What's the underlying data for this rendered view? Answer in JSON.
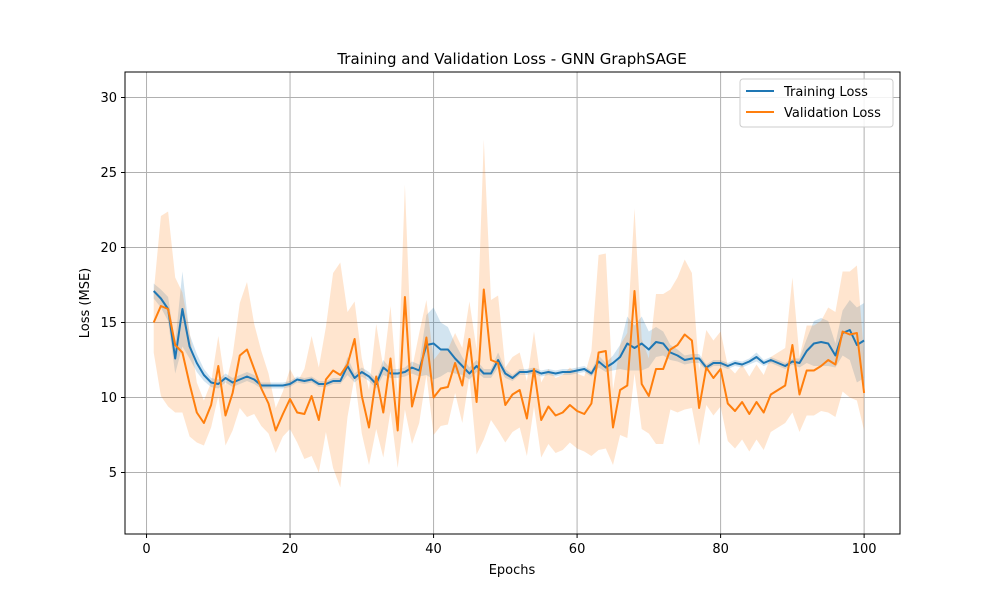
{
  "chart_data": {
    "type": "line",
    "title": "Training and Validation Loss - GNN GraphSAGE",
    "xlabel": "Epochs",
    "ylabel": "Loss (MSE)",
    "xlim": [
      -3,
      105
    ],
    "ylim": [
      0.9,
      31.7
    ],
    "xticks": [
      0,
      20,
      40,
      60,
      80,
      100
    ],
    "yticks": [
      5,
      10,
      15,
      20,
      25,
      30
    ],
    "grid": true,
    "legend_position": "top-right",
    "x": [
      1,
      2,
      3,
      4,
      5,
      6,
      7,
      8,
      9,
      10,
      11,
      12,
      13,
      14,
      15,
      16,
      17,
      18,
      19,
      20,
      21,
      22,
      23,
      24,
      25,
      26,
      27,
      28,
      29,
      30,
      31,
      32,
      33,
      34,
      35,
      36,
      37,
      38,
      39,
      40,
      41,
      42,
      43,
      44,
      45,
      46,
      47,
      48,
      49,
      50,
      51,
      52,
      53,
      54,
      55,
      56,
      57,
      58,
      59,
      60,
      61,
      62,
      63,
      64,
      65,
      66,
      67,
      68,
      69,
      70,
      71,
      72,
      73,
      74,
      75,
      76,
      77,
      78,
      79,
      80,
      81,
      82,
      83,
      84,
      85,
      86,
      87,
      88,
      89,
      90,
      91,
      92,
      93,
      94,
      95,
      96,
      97,
      98,
      99,
      100
    ],
    "series": [
      {
        "name": "Training Loss",
        "color": "#1f77b4",
        "values": [
          17.1,
          16.6,
          15.9,
          12.6,
          15.9,
          13.4,
          12.3,
          11.5,
          11.0,
          10.9,
          11.3,
          11.0,
          11.2,
          11.4,
          11.2,
          10.8,
          10.8,
          10.8,
          10.8,
          10.9,
          11.2,
          11.1,
          11.2,
          10.9,
          10.9,
          11.1,
          11.1,
          12.1,
          11.3,
          11.7,
          11.4,
          10.9,
          12.0,
          11.6,
          11.6,
          11.7,
          12.0,
          11.8,
          13.5,
          13.6,
          13.2,
          13.2,
          12.6,
          12.1,
          11.6,
          12.1,
          11.6,
          11.6,
          12.5,
          11.6,
          11.3,
          11.7,
          11.7,
          11.8,
          11.6,
          11.7,
          11.6,
          11.7,
          11.7,
          11.8,
          11.9,
          11.6,
          12.4,
          12.0,
          12.3,
          12.7,
          13.6,
          13.3,
          13.6,
          13.2,
          13.7,
          13.6,
          13.0,
          12.8,
          12.5,
          12.6,
          12.6,
          12.0,
          12.3,
          12.3,
          12.1,
          12.3,
          12.2,
          12.4,
          12.7,
          12.3,
          12.5,
          12.3,
          12.1,
          12.4,
          12.3,
          13.1,
          13.6,
          13.7,
          13.6,
          12.8,
          14.3,
          14.5,
          13.5,
          13.8
        ],
        "band_halfwidth": [
          0.5,
          0.6,
          0.8,
          1.0,
          2.5,
          0.8,
          0.6,
          0.4,
          0.3,
          0.3,
          0.3,
          0.3,
          0.3,
          0.3,
          0.3,
          0.2,
          0.2,
          0.2,
          0.2,
          0.2,
          0.2,
          0.2,
          0.2,
          0.2,
          0.2,
          0.2,
          0.2,
          0.6,
          0.3,
          0.3,
          0.3,
          0.3,
          0.5,
          0.3,
          0.3,
          0.3,
          0.4,
          0.4,
          2.0,
          2.4,
          1.8,
          1.5,
          1.0,
          0.6,
          0.4,
          0.4,
          0.3,
          0.3,
          0.5,
          0.3,
          0.2,
          0.2,
          0.2,
          0.2,
          0.2,
          0.2,
          0.2,
          0.2,
          0.2,
          0.2,
          0.2,
          0.2,
          0.4,
          0.3,
          0.5,
          0.8,
          1.8,
          1.5,
          1.8,
          1.2,
          1.0,
          0.8,
          0.5,
          0.4,
          0.3,
          0.3,
          0.3,
          0.2,
          0.2,
          0.2,
          0.2,
          0.2,
          0.2,
          0.2,
          0.3,
          0.2,
          0.2,
          0.2,
          0.2,
          0.2,
          0.3,
          0.8,
          1.5,
          1.6,
          1.5,
          0.8,
          1.5,
          2.0,
          2.5,
          2.5
        ]
      },
      {
        "name": "Validation Loss",
        "color": "#ff7f0e",
        "values": [
          15.0,
          16.1,
          15.9,
          13.5,
          13.0,
          10.9,
          9.0,
          8.3,
          9.5,
          12.1,
          8.8,
          10.3,
          12.8,
          13.2,
          11.9,
          10.6,
          9.6,
          7.8,
          8.9,
          9.9,
          9.0,
          8.9,
          10.1,
          8.5,
          11.2,
          11.8,
          11.5,
          12.2,
          13.9,
          10.1,
          8.0,
          11.4,
          9.0,
          12.6,
          7.8,
          16.7,
          9.4,
          11.3,
          14.0,
          10.0,
          10.6,
          10.7,
          12.3,
          10.8,
          13.9,
          9.7,
          17.2,
          12.5,
          12.3,
          9.5,
          10.2,
          10.5,
          8.6,
          11.9,
          8.5,
          9.4,
          8.8,
          9.0,
          9.5,
          9.1,
          8.9,
          9.6,
          13.0,
          13.1,
          8.0,
          10.5,
          10.8,
          17.1,
          10.9,
          10.1,
          11.9,
          11.9,
          13.2,
          13.5,
          14.2,
          13.8,
          9.3,
          12.0,
          11.3,
          11.9,
          9.6,
          9.1,
          9.7,
          8.9,
          9.7,
          9.0,
          10.2,
          10.5,
          10.8,
          13.5,
          10.2,
          11.8,
          11.8,
          12.1,
          12.5,
          12.2,
          14.4,
          14.2,
          14.3,
          10.3
        ],
        "band_halfwidth": [
          2.0,
          6.0,
          6.5,
          4.5,
          4.0,
          3.5,
          2.0,
          1.5,
          1.5,
          2.0,
          2.0,
          2.5,
          3.5,
          4.5,
          3.0,
          2.5,
          2.0,
          1.5,
          1.5,
          2.0,
          2.0,
          3.0,
          4.0,
          3.5,
          3.5,
          6.5,
          7.5,
          3.5,
          2.5,
          2.5,
          2.5,
          3.5,
          3.0,
          3.5,
          2.5,
          7.5,
          2.5,
          3.0,
          2.5,
          2.5,
          2.5,
          2.5,
          2.0,
          2.5,
          2.5,
          3.5,
          10.0,
          4.0,
          4.5,
          2.5,
          2.5,
          2.5,
          2.5,
          2.5,
          2.5,
          2.5,
          2.5,
          2.5,
          2.5,
          2.5,
          2.5,
          3.5,
          6.5,
          6.5,
          2.5,
          3.0,
          3.5,
          5.5,
          3.0,
          2.5,
          5.0,
          5.0,
          4.0,
          4.5,
          5.0,
          4.5,
          2.5,
          2.5,
          2.5,
          2.5,
          2.5,
          2.5,
          2.5,
          2.5,
          2.5,
          2.5,
          2.5,
          2.5,
          2.5,
          4.5,
          2.5,
          3.0,
          3.0,
          3.0,
          3.5,
          3.5,
          4.0,
          4.2,
          4.5,
          2.5
        ]
      }
    ]
  }
}
